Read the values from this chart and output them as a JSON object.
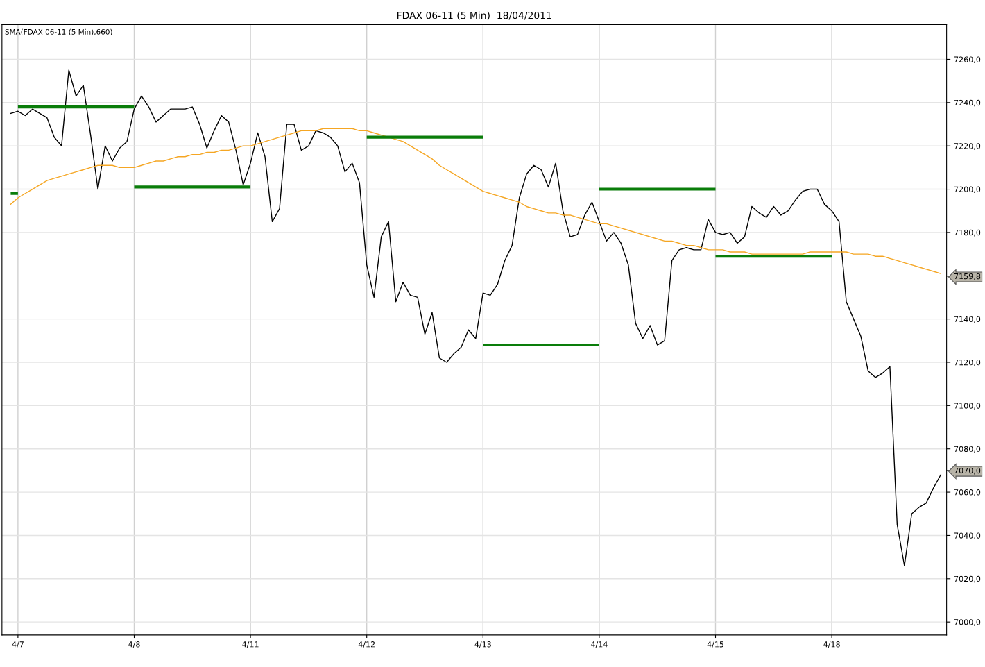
{
  "chart_data": {
    "type": "line",
    "title": "FDAX 06-11 (5 Min)  18/04/2011",
    "categories": [
      null,
      "4/7",
      null,
      null,
      null,
      null,
      null,
      null,
      null,
      null,
      null,
      null,
      null,
      null,
      null,
      null,
      null,
      "4/8",
      null,
      null,
      null,
      null,
      null,
      null,
      null,
      null,
      null,
      null,
      null,
      null,
      null,
      null,
      null,
      "4/11",
      null,
      null,
      null,
      null,
      null,
      null,
      null,
      null,
      null,
      null,
      null,
      null,
      null,
      null,
      null,
      "4/12",
      null,
      null,
      null,
      null,
      null,
      null,
      null,
      null,
      null,
      null,
      null,
      null,
      null,
      null,
      null,
      "4/13",
      null,
      null,
      null,
      null,
      null,
      null,
      null,
      null,
      null,
      null,
      null,
      null,
      null,
      null,
      null,
      "4/14",
      null,
      null,
      null,
      null,
      null,
      null,
      null,
      null,
      null,
      null,
      null,
      null,
      null,
      null,
      null,
      "4/15",
      null,
      null,
      null,
      null,
      null,
      null,
      null,
      null,
      null,
      null,
      null,
      null,
      null,
      null,
      null,
      "4/18",
      null,
      null,
      null,
      null,
      null,
      null,
      null,
      null,
      null,
      null,
      null,
      null,
      null,
      null,
      null
    ],
    "ylim": [
      6994,
      7276
    ],
    "yticks": [
      {
        "value": 7000,
        "label": "7000,0"
      },
      {
        "value": 7020,
        "label": "7020,0"
      },
      {
        "value": 7040,
        "label": "7040,0"
      },
      {
        "value": 7060,
        "label": "7060,0"
      },
      {
        "value": 7070,
        "label": "7070,0"
      },
      {
        "value": 7080,
        "label": "7080,0"
      },
      {
        "value": 7100,
        "label": "7100,0"
      },
      {
        "value": 7120,
        "label": "7120,0"
      },
      {
        "value": 7140,
        "label": "7140,0"
      },
      {
        "value": 7159.8,
        "label": "7159,8"
      },
      {
        "value": 7180,
        "label": "7180,0"
      },
      {
        "value": 7200,
        "label": "7200,0"
      },
      {
        "value": 7220,
        "label": "7220,0"
      },
      {
        "value": 7240,
        "label": "7240,0"
      },
      {
        "value": 7260,
        "label": "7260,0"
      }
    ],
    "grid": true,
    "series": [
      {
        "color": "#000000",
        "values": [
          7235,
          7236,
          7234,
          7237,
          7235,
          7233,
          7224,
          7220,
          7255,
          7243,
          7248,
          7225,
          7200,
          7220,
          7213,
          7219,
          7222,
          7237,
          7243,
          7238,
          7231,
          7234,
          7237,
          7237,
          7237,
          7238,
          7230,
          7219,
          7227,
          7234,
          7231,
          7218,
          7202,
          7212,
          7226,
          7215,
          7185,
          7191,
          7230,
          7230,
          7218,
          7220,
          7227,
          7226,
          7224,
          7220,
          7208,
          7212,
          7203,
          7165,
          7150,
          7178,
          7185,
          7148,
          7157,
          7151,
          7150,
          7133,
          7143,
          7122,
          7120,
          7124,
          7127,
          7135,
          7131,
          7152,
          7151,
          7156,
          7167,
          7174,
          7196,
          7207,
          7211,
          7209,
          7201,
          7212,
          7190,
          7178,
          7179,
          7188,
          7194,
          7185,
          7176,
          7180,
          7175,
          7165,
          7138,
          7131,
          7137,
          7128,
          7130,
          7167,
          7172,
          7173,
          7172,
          7172,
          7186,
          7180,
          7179,
          7180,
          7175,
          7178,
          7192,
          7189,
          7187,
          7192,
          7188,
          7190,
          7195,
          7199,
          7200,
          7200,
          7193,
          7190,
          7185,
          7148,
          7140,
          7132,
          7116,
          7113,
          7115,
          7118,
          7045,
          7026,
          7050,
          7053,
          7055,
          7062,
          7068
        ]
      },
      {
        "type": "line",
        "color": "#f5a623",
        "values": [
          7193,
          7196,
          7198,
          7200,
          7202,
          7204,
          7205,
          7206,
          7207,
          7208,
          7209,
          7210,
          7211,
          7211,
          7211,
          7210,
          7210,
          7210,
          7211,
          7212,
          7213,
          7213,
          7214,
          7215,
          7215,
          7216,
          7216,
          7217,
          7217,
          7218,
          7218,
          7219,
          7220,
          7220,
          7221,
          7222,
          7223,
          7224,
          7225,
          7226,
          7227,
          7227,
          7227,
          7228,
          7228,
          7228,
          7228,
          7228,
          7227,
          7227,
          7226,
          7225,
          7224,
          7223,
          7222,
          7220,
          7218,
          7216,
          7214,
          7211,
          7209,
          7207,
          7205,
          7203,
          7201,
          7199,
          7198,
          7197,
          7196,
          7195,
          7194,
          7192,
          7191,
          7190,
          7189,
          7189,
          7188,
          7188,
          7187,
          7186,
          7185,
          7184,
          7184,
          7183,
          7182,
          7181,
          7180,
          7179,
          7178,
          7177,
          7176,
          7176,
          7175,
          7174,
          7174,
          7173,
          7172,
          7172,
          7172,
          7171,
          7171,
          7171,
          7170,
          7170,
          7170,
          7170,
          7170,
          7170,
          7170,
          7170,
          7171,
          7171,
          7171,
          7171,
          7171,
          7171,
          7170,
          7170,
          7170,
          7169,
          7169,
          7168,
          7167,
          7166,
          7165,
          7164,
          7163,
          7162,
          7161
        ]
      },
      {
        "type": "step",
        "color": "#0a7d0a",
        "values": [
          7198,
          7198,
          null,
          null,
          null,
          null,
          null,
          null,
          null,
          null,
          null,
          null,
          null,
          null,
          null,
          null,
          null,
          null,
          null,
          null,
          null,
          null,
          null,
          null,
          null,
          null,
          null,
          null,
          null,
          null,
          null,
          null,
          null,
          null,
          null,
          null,
          null,
          null,
          null,
          null,
          null,
          null,
          null,
          null,
          null,
          null,
          null,
          null,
          null,
          null,
          null,
          null,
          null,
          null,
          null,
          null,
          null,
          null,
          null,
          null,
          null,
          null,
          null,
          null,
          null,
          null,
          null,
          null,
          null,
          null,
          null,
          null,
          null,
          null,
          null,
          null,
          null,
          null,
          null,
          null,
          null,
          null,
          null,
          null,
          null,
          null,
          null,
          null,
          null,
          null,
          null,
          null,
          null,
          null,
          null,
          null,
          null,
          null,
          null,
          null,
          null,
          null,
          null,
          null,
          null,
          null,
          null,
          null,
          null,
          null,
          null,
          null,
          null,
          null,
          null,
          null,
          null,
          null,
          null,
          null,
          null,
          null,
          null,
          null,
          null,
          null,
          null,
          null,
          null
        ]
      },
      {
        "type": "step",
        "color": "#0a7d0a",
        "values": [
          null,
          7238,
          7238,
          7238,
          7238,
          7238,
          7238,
          7238,
          7238,
          7238,
          7238,
          7238,
          7238,
          7238,
          7238,
          7238,
          7238,
          7238,
          null,
          null,
          null,
          null,
          null,
          null,
          null,
          null,
          null,
          null,
          null,
          null,
          null,
          null,
          null,
          null,
          null,
          null,
          null,
          null,
          null,
          null,
          null,
          null,
          null,
          null,
          null,
          null,
          null,
          null,
          null,
          null,
          null,
          null,
          null,
          null,
          null,
          null,
          null,
          null,
          null,
          null,
          null,
          null,
          null,
          null,
          null,
          null,
          null,
          null,
          null,
          null,
          null,
          null,
          null,
          null,
          null,
          null,
          null,
          null,
          null,
          null,
          null,
          null,
          null,
          null,
          null,
          null,
          null,
          null,
          null,
          null,
          null,
          null,
          null,
          null,
          null,
          null,
          null,
          null,
          null,
          null,
          null,
          null,
          null,
          null,
          null,
          null,
          null,
          null,
          null,
          null,
          null,
          null,
          null,
          null,
          null,
          null,
          null,
          null,
          null,
          null,
          null,
          null,
          null,
          null,
          null,
          null,
          null,
          null,
          null
        ]
      },
      {
        "type": "step",
        "color": "#0a7d0a",
        "values": [
          null,
          null,
          null,
          null,
          null,
          null,
          null,
          null,
          null,
          null,
          null,
          null,
          null,
          null,
          null,
          null,
          null,
          7201,
          7201,
          7201,
          7201,
          7201,
          7201,
          7201,
          7201,
          7201,
          7201,
          7201,
          7201,
          7201,
          7201,
          7201,
          7201,
          7201,
          null,
          null,
          null,
          null,
          null,
          null,
          null,
          null,
          null,
          null,
          null,
          null,
          null,
          null,
          null,
          null,
          null,
          null,
          null,
          null,
          null,
          null,
          null,
          null,
          null,
          null,
          null,
          null,
          null,
          null,
          null,
          null,
          null,
          null,
          null,
          null,
          null,
          null,
          null,
          null,
          null,
          null,
          null,
          null,
          null,
          null,
          null,
          null,
          null,
          null,
          null,
          null,
          null,
          null,
          null,
          null,
          null,
          null,
          null,
          null,
          null,
          null,
          null,
          null,
          null,
          null,
          null,
          null,
          null,
          null,
          null,
          null,
          null,
          null,
          null,
          null,
          null,
          null,
          null,
          null,
          null,
          null,
          null,
          null,
          null,
          null,
          null,
          null,
          null,
          null,
          null,
          null,
          null,
          null,
          null
        ]
      },
      {
        "type": "step",
        "color": "#0a7d0a",
        "values": [
          null,
          null,
          null,
          null,
          null,
          null,
          null,
          null,
          null,
          null,
          null,
          null,
          null,
          null,
          null,
          null,
          null,
          null,
          null,
          null,
          null,
          null,
          null,
          null,
          null,
          null,
          null,
          null,
          null,
          null,
          null,
          null,
          null,
          null,
          null,
          null,
          null,
          null,
          null,
          null,
          null,
          null,
          null,
          null,
          null,
          null,
          null,
          null,
          null,
          7224,
          7224,
          7224,
          7224,
          7224,
          7224,
          7224,
          7224,
          7224,
          7224,
          7224,
          7224,
          7224,
          7224,
          7224,
          7224,
          7224,
          null,
          null,
          null,
          null,
          null,
          null,
          null,
          null,
          null,
          null,
          null,
          null,
          null,
          null,
          null,
          null,
          null,
          null,
          null,
          null,
          null,
          null,
          null,
          null,
          null,
          null,
          null,
          null,
          null,
          null,
          null,
          null,
          null,
          null,
          null,
          null,
          null,
          null,
          null,
          null,
          null,
          null,
          null,
          null,
          null,
          null,
          null,
          null,
          null,
          null,
          null,
          null,
          null,
          null,
          null,
          null,
          null,
          null,
          null,
          null,
          null,
          null,
          null
        ]
      },
      {
        "type": "step",
        "color": "#0a7d0a",
        "values": [
          null,
          null,
          null,
          null,
          null,
          null,
          null,
          null,
          null,
          null,
          null,
          null,
          null,
          null,
          null,
          null,
          null,
          null,
          null,
          null,
          null,
          null,
          null,
          null,
          null,
          null,
          null,
          null,
          null,
          null,
          null,
          null,
          null,
          null,
          null,
          null,
          null,
          null,
          null,
          null,
          null,
          null,
          null,
          null,
          null,
          null,
          null,
          null,
          null,
          null,
          null,
          null,
          null,
          null,
          null,
          null,
          null,
          null,
          null,
          null,
          null,
          null,
          null,
          null,
          null,
          7128,
          7128,
          7128,
          7128,
          7128,
          7128,
          7128,
          7128,
          7128,
          7128,
          7128,
          7128,
          7128,
          7128,
          7128,
          7128,
          7128,
          null,
          null,
          null,
          null,
          null,
          null,
          null,
          null,
          null,
          null,
          null,
          null,
          null,
          null,
          null,
          null,
          null,
          null,
          null,
          null,
          null,
          null,
          null,
          null,
          null,
          null,
          null,
          null,
          null,
          null,
          null,
          null,
          null,
          null,
          null,
          null,
          null,
          null,
          null,
          null,
          null,
          null,
          null,
          null,
          null,
          null,
          null
        ]
      },
      {
        "type": "step",
        "color": "#0a7d0a",
        "values": [
          null,
          null,
          null,
          null,
          null,
          null,
          null,
          null,
          null,
          null,
          null,
          null,
          null,
          null,
          null,
          null,
          null,
          null,
          null,
          null,
          null,
          null,
          null,
          null,
          null,
          null,
          null,
          null,
          null,
          null,
          null,
          null,
          null,
          null,
          null,
          null,
          null,
          null,
          null,
          null,
          null,
          null,
          null,
          null,
          null,
          null,
          null,
          null,
          null,
          null,
          null,
          null,
          null,
          null,
          null,
          null,
          null,
          null,
          null,
          null,
          null,
          null,
          null,
          null,
          null,
          null,
          null,
          null,
          null,
          null,
          null,
          null,
          null,
          null,
          null,
          null,
          null,
          null,
          null,
          null,
          null,
          7200,
          7200,
          7200,
          7200,
          7200,
          7200,
          7200,
          7200,
          7200,
          7200,
          7200,
          7200,
          7200,
          7200,
          7200,
          7200,
          7200,
          null,
          null,
          null,
          null,
          null,
          null,
          null,
          null,
          null,
          null,
          null,
          null,
          null,
          null,
          null,
          null,
          null,
          null,
          null,
          null,
          null,
          null,
          null,
          null,
          null,
          null,
          null,
          null,
          null,
          null,
          null
        ]
      },
      {
        "type": "step",
        "color": "#0a7d0a",
        "values": [
          null,
          null,
          null,
          null,
          null,
          null,
          null,
          null,
          null,
          null,
          null,
          null,
          null,
          null,
          null,
          null,
          null,
          null,
          null,
          null,
          null,
          null,
          null,
          null,
          null,
          null,
          null,
          null,
          null,
          null,
          null,
          null,
          null,
          null,
          null,
          null,
          null,
          null,
          null,
          null,
          null,
          null,
          null,
          null,
          null,
          null,
          null,
          null,
          null,
          null,
          null,
          null,
          null,
          null,
          null,
          null,
          null,
          null,
          null,
          null,
          null,
          null,
          null,
          null,
          null,
          null,
          null,
          null,
          null,
          null,
          null,
          null,
          null,
          null,
          null,
          null,
          null,
          null,
          null,
          null,
          null,
          null,
          null,
          null,
          null,
          null,
          null,
          null,
          null,
          null,
          null,
          null,
          null,
          null,
          null,
          null,
          null,
          7169,
          7169,
          7169,
          7169,
          7169,
          7169,
          7169,
          7169,
          7169,
          7169,
          7169,
          7169,
          7169,
          7169,
          7169,
          7169,
          7169,
          null,
          null,
          null,
          null,
          null,
          null,
          null,
          null,
          null,
          null,
          null,
          null,
          null,
          null,
          null
        ]
      }
    ],
    "annotations": [
      "SMA(FDAX 06-11 (5 Min),660)"
    ]
  }
}
